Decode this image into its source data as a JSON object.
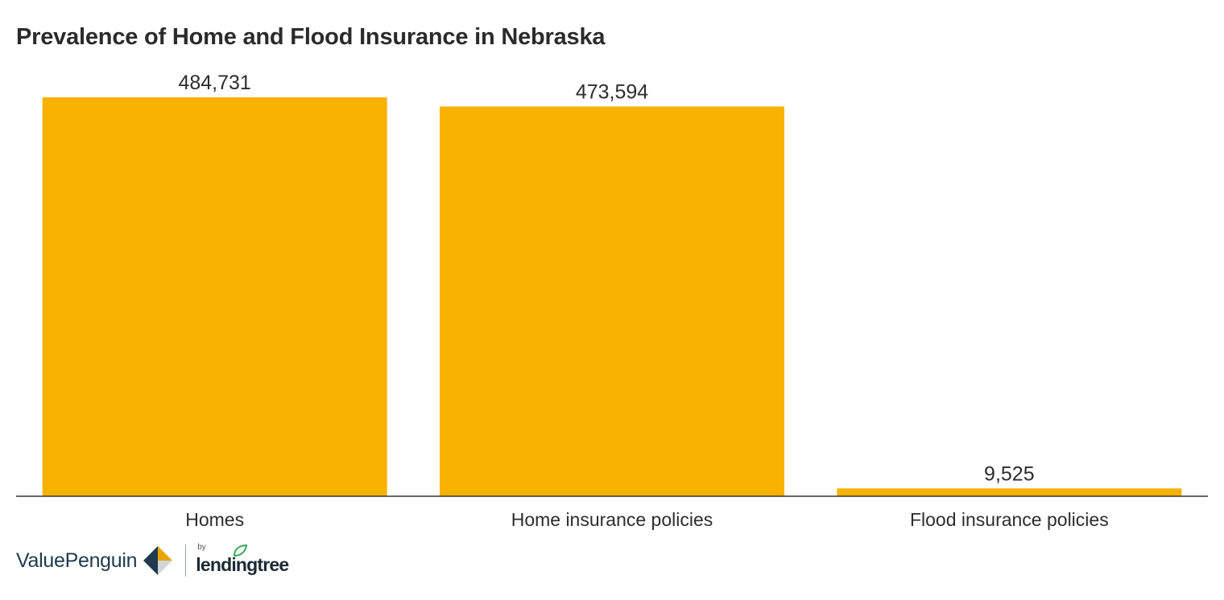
{
  "chart_data": {
    "type": "bar",
    "title": "Prevalence of Home and Flood Insurance in Nebraska",
    "categories": [
      "Homes",
      "Home insurance policies",
      "Flood insurance policies"
    ],
    "values": [
      484731,
      473594,
      9525
    ],
    "value_labels": [
      "484,731",
      "473,594",
      "9,525"
    ],
    "xlabel": "",
    "ylabel": "",
    "ylim": [
      0,
      484731
    ],
    "grid": false,
    "legend": "none",
    "bar_color": "#F9B200",
    "axis_color": "#333333"
  },
  "footer": {
    "brand": "ValuePenguin",
    "partner_prefix": "by",
    "partner": "lendingtree",
    "partner_leaf_color": "#3aaa5a"
  }
}
